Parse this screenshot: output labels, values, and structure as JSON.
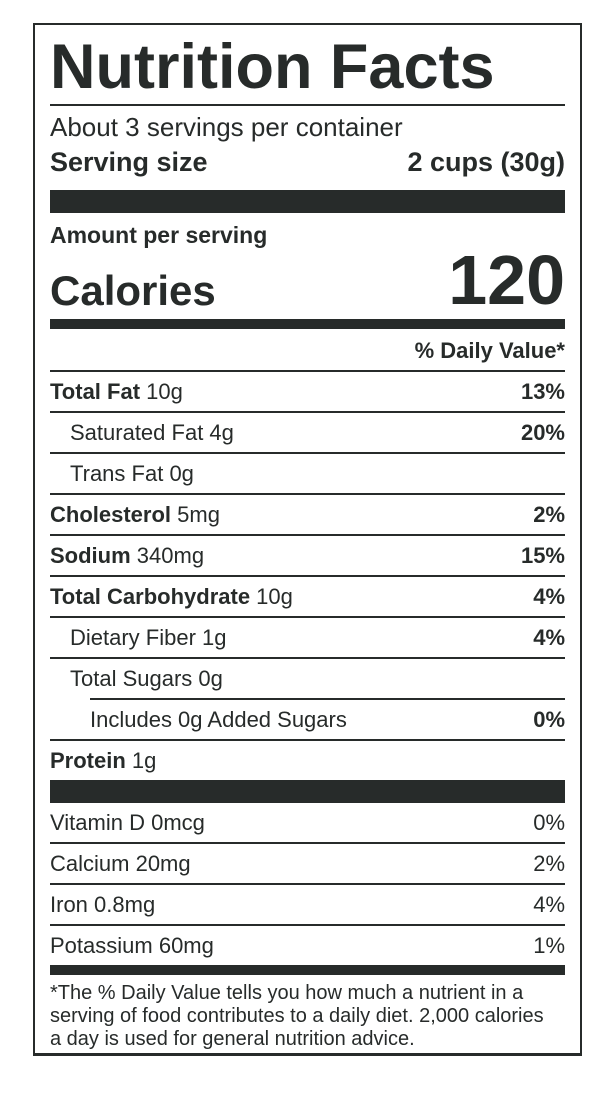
{
  "colors": {
    "ink": "#272b2a",
    "background": "#ffffff"
  },
  "label": {
    "title": "Nutrition Facts",
    "servings_per_container": "About 3 servings per container",
    "serving_size": {
      "label": "Serving size",
      "value": "2 cups (30g)"
    },
    "amount_per_serving": "Amount per serving",
    "calories": {
      "label": "Calories",
      "value": "120"
    },
    "daily_value_header": "% Daily Value*",
    "nutrients": [
      {
        "name": "Total Fat",
        "amount": "10g",
        "dv": "13%",
        "bold": true,
        "indent": 0
      },
      {
        "name": "Saturated Fat",
        "amount": "4g",
        "dv": "20%",
        "bold": false,
        "indent": 1
      },
      {
        "name": "Trans Fat",
        "amount": "0g",
        "dv": "",
        "bold": false,
        "indent": 1
      },
      {
        "name": "Cholesterol",
        "amount": "5mg",
        "dv": "2%",
        "bold": true,
        "indent": 0
      },
      {
        "name": "Sodium",
        "amount": "340mg",
        "dv": "15%",
        "bold": true,
        "indent": 0
      },
      {
        "name": "Total Carbohydrate",
        "amount": "10g",
        "dv": "4%",
        "bold": true,
        "indent": 0
      },
      {
        "name": "Dietary Fiber",
        "amount": "1g",
        "dv": "4%",
        "bold": false,
        "indent": 1
      },
      {
        "name": "Total Sugars",
        "amount": "0g",
        "dv": "",
        "bold": false,
        "indent": 1
      },
      {
        "name": "Includes 0g Added Sugars",
        "amount": "",
        "dv": "0%",
        "bold": false,
        "indent": 2
      },
      {
        "name": "Protein",
        "amount": "1g",
        "dv": "",
        "bold": true,
        "indent": 0
      }
    ],
    "micronutrients": [
      {
        "name": "Vitamin D",
        "amount": "0mcg",
        "dv": "0%",
        "bold": false,
        "indent": 0
      },
      {
        "name": "Calcium",
        "amount": "20mg",
        "dv": "2%",
        "bold": false,
        "indent": 0
      },
      {
        "name": "Iron",
        "amount": "0.8mg",
        "dv": "4%",
        "bold": false,
        "indent": 0
      },
      {
        "name": "Potassium",
        "amount": "60mg",
        "dv": "1%",
        "bold": false,
        "indent": 0
      }
    ],
    "footnote_lines": [
      "*The % Daily Value tells you how much a nutrient in a",
      "serving of food contributes to a daily diet. 2,000 calories",
      "a day is used for general nutrition advice."
    ]
  }
}
